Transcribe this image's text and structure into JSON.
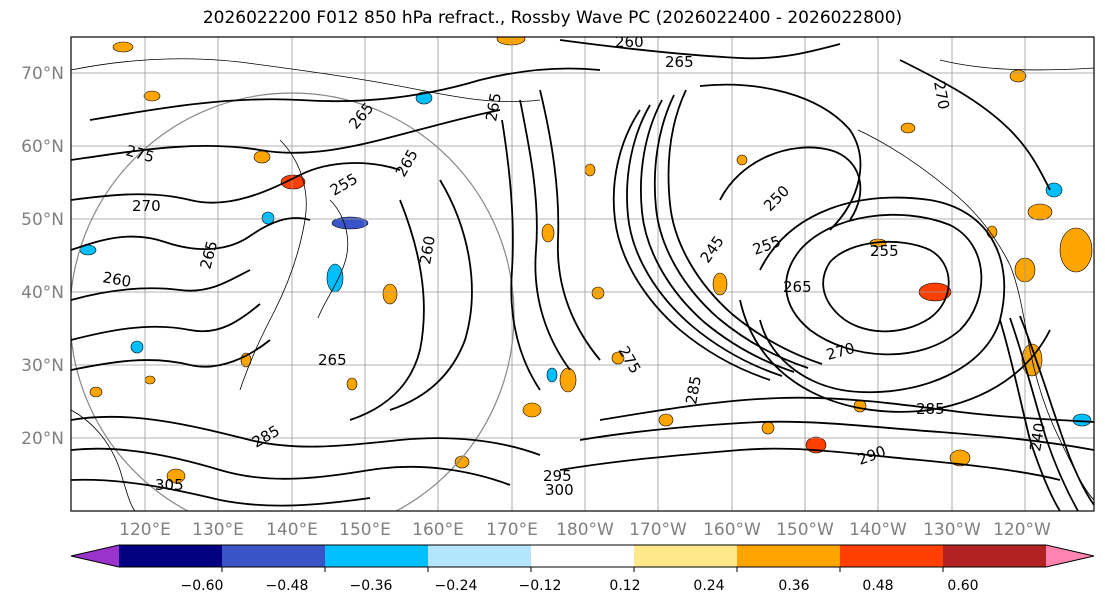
{
  "title": "2026022200 F012 850 hPa refract., Rossby Wave PC (2026022400 - 2026022800)",
  "lat_labels": [
    "70°N",
    "60°N",
    "50°N",
    "40°N",
    "30°N",
    "20°N"
  ],
  "lon_labels": [
    "120°E",
    "130°E",
    "140°E",
    "150°E",
    "160°E",
    "170°E",
    "180°W",
    "170°W",
    "160°W",
    "150°W",
    "140°W",
    "130°W",
    "120°W"
  ],
  "colorbar": {
    "ticks": [
      "−0.60",
      "−0.48",
      "−0.36",
      "−0.24",
      "−0.12",
      "0.12",
      "0.24",
      "0.36",
      "0.48",
      "0.60"
    ],
    "colors": [
      "#9933cc",
      "#000080",
      "#3a54c8",
      "#00bfff",
      "#b3e5fc",
      "#ffffff",
      "#ffe98a",
      "#ffa500",
      "#ff3f00",
      "#b22222",
      "#ff85b0"
    ]
  },
  "contour_labels": [
    {
      "text": "260"
    },
    {
      "text": "265"
    },
    {
      "text": "270"
    },
    {
      "text": "275"
    },
    {
      "text": "270"
    },
    {
      "text": "260"
    },
    {
      "text": "265"
    },
    {
      "text": "255"
    },
    {
      "text": "265"
    },
    {
      "text": "265"
    },
    {
      "text": "260"
    },
    {
      "text": "265"
    },
    {
      "text": "250"
    },
    {
      "text": "245"
    },
    {
      "text": "255"
    },
    {
      "text": "265"
    },
    {
      "text": "255"
    },
    {
      "text": "270"
    },
    {
      "text": "285"
    },
    {
      "text": "295"
    },
    {
      "text": "300"
    },
    {
      "text": "305"
    },
    {
      "text": "290"
    },
    {
      "text": "240"
    },
    {
      "text": "285"
    },
    {
      "text": "265"
    },
    {
      "text": "275"
    },
    {
      "text": "285"
    }
  ]
}
